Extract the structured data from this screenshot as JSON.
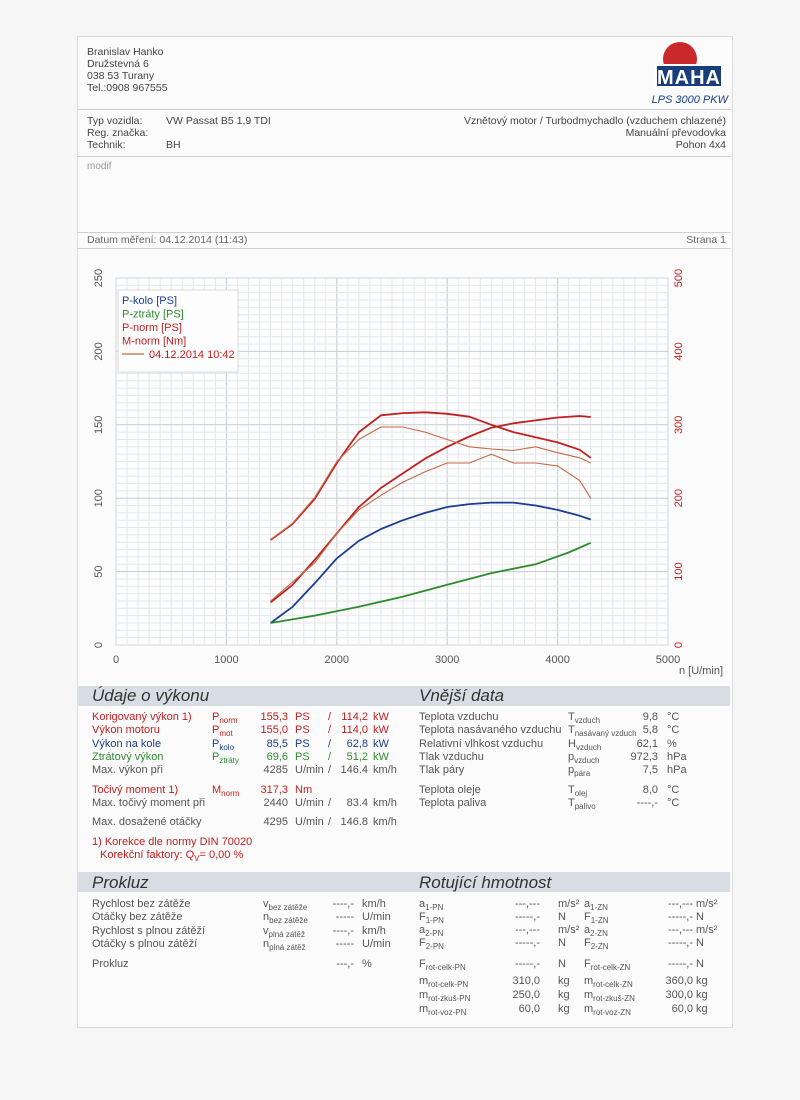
{
  "header": {
    "name": "Branislav Hanko",
    "street": "Družstevná 6",
    "city": "038 53 Turany",
    "phone": "Tel.:0908 967555",
    "logo": "MAHA",
    "model": "LPS 3000 PKW"
  },
  "vehicle": {
    "type_label": "Typ vozidla:",
    "type_value": "VW Passat B5 1,9 TDI",
    "reg_label": "Reg. značka:",
    "tech_label": "Technik:",
    "tech_value": "BH",
    "engine": "Vznětový motor / Turbodmychadlo (vzduchem chlazené)",
    "gearbox": "Manuální převodovka",
    "drive": "Pohon 4x4",
    "note": "modif"
  },
  "measure": {
    "date_label": "Datum měření: 04.12.2014 (11:43)",
    "page_label": "Strana 1"
  },
  "chart_data": {
    "type": "line",
    "xlabel": "n [U/min]",
    "xlim": [
      0,
      5000
    ],
    "x_ticks": [
      "0",
      "1000",
      "2000",
      "3000",
      "4000",
      "5000"
    ],
    "y_left_ticks": [
      "0",
      "50",
      "100",
      "150",
      "200",
      "250"
    ],
    "y_right_ticks": [
      "0",
      "100",
      "200",
      "300",
      "400",
      "500"
    ],
    "ylim_left": [
      0,
      250
    ],
    "ylim_right": [
      0,
      500
    ],
    "legend": [
      "P-kolo [PS]",
      "P-ztráty [PS]",
      "P-norm [PS]",
      "M-norm [Nm]"
    ],
    "legend_date": "04.12.2014 10:42",
    "legend_placement": "top-left",
    "grid": true,
    "series": [
      {
        "name": "P-kolo [PS]",
        "color": "#1b3f8d",
        "axis": "left",
        "x": [
          1400,
          1600,
          1800,
          2000,
          2200,
          2400,
          2600,
          2800,
          3000,
          3200,
          3400,
          3600,
          3800,
          4000,
          4200,
          4300
        ],
        "y": [
          15,
          26,
          42,
          59,
          71,
          79,
          85,
          90,
          94,
          96,
          97,
          97,
          95,
          92,
          88,
          85.5
        ]
      },
      {
        "name": "P-ztráty [PS]",
        "color": "#2f8a2f",
        "axis": "left",
        "x": [
          1400,
          1800,
          2200,
          2600,
          3000,
          3400,
          3800,
          4100,
          4300
        ],
        "y": [
          15,
          20,
          26,
          33,
          41,
          49,
          55,
          63,
          69.6
        ]
      },
      {
        "name": "P-norm [PS]",
        "color": "#c0201f",
        "axis": "left",
        "x": [
          1400,
          1600,
          1800,
          2000,
          2200,
          2400,
          2600,
          2800,
          3000,
          3200,
          3400,
          3600,
          3800,
          4000,
          4200,
          4300
        ],
        "y": [
          29,
          41,
          58,
          76,
          94,
          107,
          117,
          127,
          135,
          142,
          148,
          151,
          153,
          155,
          156,
          155.3
        ]
      },
      {
        "name": "M-norm [Nm]",
        "color": "#c0201f",
        "axis": "right",
        "x": [
          1400,
          1600,
          1800,
          2000,
          2200,
          2400,
          2600,
          2800,
          3000,
          3200,
          3400,
          3600,
          3800,
          4000,
          4200,
          4300
        ],
        "y": [
          143,
          165,
          199,
          248,
          290,
          313,
          316,
          317,
          315,
          311,
          300,
          290,
          283,
          276,
          266,
          255
        ]
      },
      {
        "name": "P-norm [PS] 04.12.2014 10:42",
        "color": "#c36a45",
        "axis": "left",
        "x": [
          1400,
          1800,
          2000,
          2200,
          2400,
          2600,
          2800,
          3000,
          3200,
          3400,
          3600,
          3800,
          4000,
          4200,
          4300
        ],
        "y": [
          30,
          56,
          76,
          92,
          102,
          111,
          118,
          124,
          124,
          130,
          124,
          124,
          122,
          112,
          100
        ]
      },
      {
        "name": "M-norm [Nm] 04.12.2014 10:42",
        "color": "#c36a45",
        "axis": "right",
        "x": [
          1400,
          1600,
          1800,
          2000,
          2200,
          2400,
          2600,
          2800,
          3000,
          3200,
          3400,
          3600,
          3800,
          4000,
          4200,
          4300
        ],
        "y": [
          143,
          166,
          201,
          250,
          280,
          297,
          297,
          290,
          280,
          270,
          267,
          265,
          270,
          262,
          255,
          248
        ]
      }
    ]
  },
  "performance": {
    "title": "Údaje o výkonu",
    "rows": [
      {
        "label": "Korigovaný výkon 1)",
        "sym": "P",
        "sub": "norm",
        "v1": "155,3",
        "u1": "PS",
        "sep": "/",
        "v2": "114,2",
        "u2": "kW",
        "color": "#c0201f"
      },
      {
        "label": "Výkon motoru",
        "sym": "P",
        "sub": "mot",
        "v1": "155,0",
        "u1": "PS",
        "sep": "/",
        "v2": "114,0",
        "u2": "kW",
        "color": "#c0201f"
      },
      {
        "label": "Výkon na kole",
        "sym": "P",
        "sub": "kolo",
        "v1": "85,5",
        "u1": "PS",
        "sep": "/",
        "v2": "62,8",
        "u2": "kW",
        "color": "#1b3f8d"
      },
      {
        "label": "Ztrátový výkon",
        "sym": "P",
        "sub": "ztráty",
        "v1": "69,6",
        "u1": "PS",
        "sep": "/",
        "v2": "51,2",
        "u2": "kW",
        "color": "#2f8a2f"
      },
      {
        "label": "Max. výkon při",
        "sym": "",
        "sub": "",
        "v1": "4285",
        "u1": "U/min",
        "sep": "/",
        "v2": "146.4",
        "u2": "km/h",
        "color": "#555"
      }
    ],
    "torque_rows": [
      {
        "label": "Točivý moment 1)",
        "sym": "M",
        "sub": "norm",
        "v1": "317,3",
        "u1": "Nm",
        "sep": "",
        "v2": "",
        "u2": "",
        "color": "#c0201f"
      },
      {
        "label": "Max. točivý moment při",
        "sym": "",
        "sub": "",
        "v1": "2440",
        "u1": "U/min",
        "sep": "/",
        "v2": "83.4",
        "u2": "km/h",
        "color": "#555"
      }
    ],
    "max_rpm": {
      "label": "Max. dosažené otáčky",
      "v1": "4295",
      "u1": "U/min",
      "sep": "/",
      "v2": "146.8",
      "u2": "km/h"
    },
    "note1": "1) Korekce dle normy DIN 70020",
    "note2": "Korekční faktory: Q",
    "note2_sub": "V",
    "note2_val": "=   0,00 %"
  },
  "external": {
    "title": "Vnější data",
    "rows": [
      {
        "label": "Teplota vzduchu",
        "sym": "T",
        "sub": "vzduch",
        "val": "9,8",
        "unit": "°C"
      },
      {
        "label": "Teplota nasávaného vzduchu",
        "sym": "T",
        "sub": "nasávaný vzduch",
        "val": "5,8",
        "unit": "°C"
      },
      {
        "label": "Relativní vlhkost vzduchu",
        "sym": "H",
        "sub": "vzduch",
        "val": "62,1",
        "unit": "%"
      },
      {
        "label": "Tlak vzduchu",
        "sym": "p",
        "sub": "vzduch",
        "val": "972,3",
        "unit": "hPa"
      },
      {
        "label": "Tlak páry",
        "sym": "p",
        "sub": "pára",
        "val": "7,5",
        "unit": "hPa"
      },
      {
        "label": "Teplota oleje",
        "sym": "T",
        "sub": "olej",
        "val": "8,0",
        "unit": "°C"
      },
      {
        "label": "Teplota paliva",
        "sym": "T",
        "sub": "palivo",
        "val": "----,-",
        "unit": "°C"
      }
    ]
  },
  "prokluz": {
    "title": "Prokluz",
    "rows": [
      {
        "label": "Rychlost bez zátěže",
        "sym": "v",
        "sub": "bez zátěže",
        "val": "----,-",
        "unit": "km/h"
      },
      {
        "label": "Otáčky bez zátěže",
        "sym": "n",
        "sub": "bez zátěže",
        "val": "-----",
        "unit": "U/min"
      },
      {
        "label": "Rychlost s plnou zátěží",
        "sym": "v",
        "sub": "plná zátěž",
        "val": "----,-",
        "unit": "km/h"
      },
      {
        "label": "Otáčky s plnou zátěží",
        "sym": "n",
        "sub": "plná zátěž",
        "val": "-----",
        "unit": "U/min"
      }
    ],
    "slip": {
      "label": "Prokluz",
      "val": "---,-",
      "unit": "%"
    }
  },
  "rotating": {
    "title": "Rotující hmotnost",
    "left": [
      {
        "sym": "a",
        "sub": "1-PN",
        "val": "---,---",
        "unit": "m/s²"
      },
      {
        "sym": "F",
        "sub": "1-PN",
        "val": "-----,-",
        "unit": "N"
      },
      {
        "sym": "a",
        "sub": "2-PN",
        "val": "---,---",
        "unit": "m/s²"
      },
      {
        "sym": "F",
        "sub": "2-PN",
        "val": "-----,-",
        "unit": "N"
      },
      {
        "sym": "F",
        "sub": "rot-celk-PN",
        "val": "-----,-",
        "unit": "N"
      },
      {
        "sym": "m",
        "sub": "rot-celk-PN",
        "val": "310,0",
        "unit": "kg"
      },
      {
        "sym": "m",
        "sub": "rot-zkuš-PN",
        "val": "250,0",
        "unit": "kg"
      },
      {
        "sym": "m",
        "sub": "rot-voz-PN",
        "val": "60,0",
        "unit": "kg"
      }
    ],
    "right": [
      {
        "sym": "a",
        "sub": "1-ZN",
        "val": "---,---",
        "unit": "m/s²"
      },
      {
        "sym": "F",
        "sub": "1-ZN",
        "val": "-----,-",
        "unit": "N"
      },
      {
        "sym": "a",
        "sub": "2-ZN",
        "val": "---,---",
        "unit": "m/s²"
      },
      {
        "sym": "F",
        "sub": "2-ZN",
        "val": "-----,-",
        "unit": "N"
      },
      {
        "sym": "F",
        "sub": "rot-celk-ZN",
        "val": "-----,-",
        "unit": "N"
      },
      {
        "sym": "m",
        "sub": "rot-celk-ZN",
        "val": "360,0",
        "unit": "kg"
      },
      {
        "sym": "m",
        "sub": "rot-zkuš-ZN",
        "val": "300,0",
        "unit": "kg"
      },
      {
        "sym": "m",
        "sub": "rot-voz-ZN",
        "val": "60,0",
        "unit": "kg"
      }
    ]
  }
}
